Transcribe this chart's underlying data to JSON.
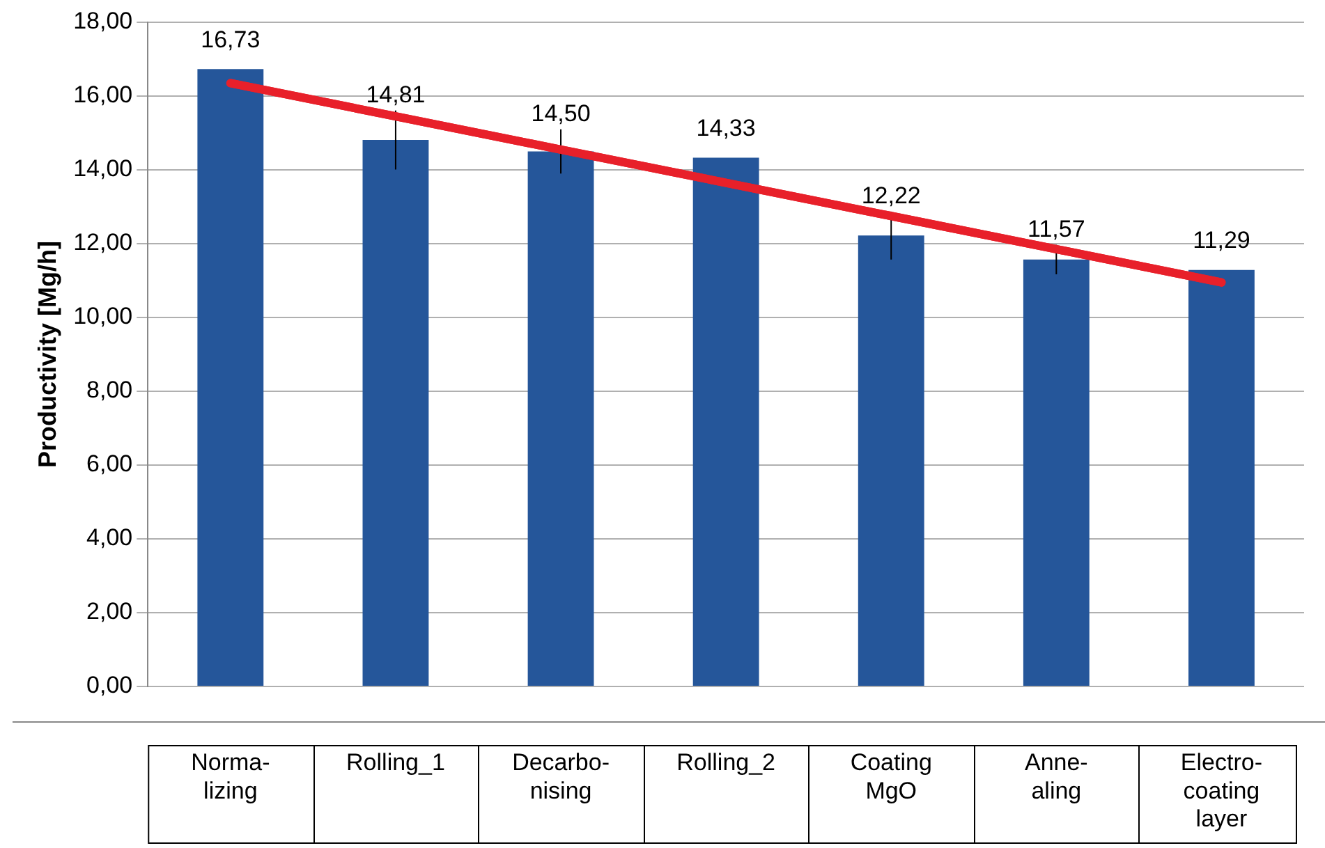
{
  "chart_data": {
    "type": "bar",
    "ylabel": "Productivity [Mg/h]",
    "categories": [
      "Norma-\nlizing",
      "Rolling_1",
      "Decarbo-\nnising",
      "Rolling_2",
      "Coating\nMgO",
      "Anne-\naling",
      "Electro-\ncoating\nlayer"
    ],
    "series": [
      {
        "color": "#25569a",
        "values": [
          16.73,
          14.81,
          14.5,
          14.33,
          12.22,
          11.57,
          11.29
        ],
        "value_labels": [
          "16,73",
          "14,81",
          "14,50",
          "14,33",
          "12,22",
          "11,57",
          "11,29"
        ],
        "errors": [
          null,
          0.8,
          0.6,
          null,
          0.65,
          0.4,
          null
        ]
      },
      {
        "type": "line",
        "color": "#e8202a",
        "values": [
          16.35,
          15.45,
          14.55,
          13.65,
          12.75,
          11.85,
          10.95
        ],
        "marker": "none"
      }
    ],
    "ylim": [
      0,
      18
    ],
    "yticks": [
      {
        "value": 0,
        "label": "0,00"
      },
      {
        "value": 2,
        "label": "2,00"
      },
      {
        "value": 4,
        "label": "4,00"
      },
      {
        "value": 6,
        "label": "6,00"
      },
      {
        "value": 8,
        "label": "8,00"
      },
      {
        "value": 10,
        "label": "10,00"
      },
      {
        "value": 12,
        "label": "12,00"
      },
      {
        "value": 14,
        "label": "14,00"
      },
      {
        "value": 16,
        "label": "16,00"
      },
      {
        "value": 18,
        "label": "18,00"
      }
    ],
    "grid": "y",
    "legend": false
  }
}
